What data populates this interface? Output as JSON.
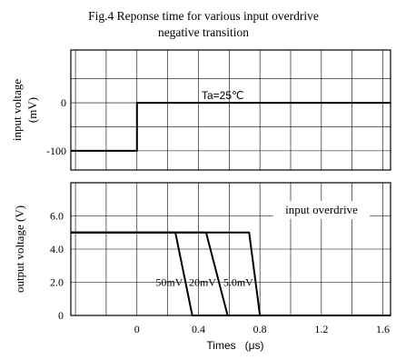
{
  "title_line1": "Fig.4 Reponse time for various input overdrive",
  "title_line2": "negative transition",
  "chart_data": [
    {
      "type": "line",
      "ylabel_line1": "input voltage",
      "ylabel_line2": "(mV)",
      "ylim": [
        -140,
        110
      ],
      "xlim": [
        -0.43,
        1.65
      ],
      "yticks": [
        {
          "value": 0,
          "label": "0"
        },
        {
          "value": -100,
          "label": "-100"
        }
      ],
      "grid": true,
      "annotations": [
        {
          "text": "Ta=25℃"
        }
      ],
      "series": [
        {
          "x": [
            -0.43,
            0.0,
            0.0,
            1.65
          ],
          "y": [
            -100,
            -100,
            0,
            0
          ]
        }
      ]
    },
    {
      "type": "line",
      "ylabel": "output voltage  (V)",
      "xlabel": "Times   (μs)",
      "xlim": [
        -0.43,
        1.65
      ],
      "ylim": [
        0,
        8.0
      ],
      "xticks": [
        {
          "value": 0,
          "label": "0"
        },
        {
          "value": 0.4,
          "label": "0.4"
        },
        {
          "value": 0.8,
          "label": "0.8"
        },
        {
          "value": 1.2,
          "label": "1.2"
        },
        {
          "value": 1.6,
          "label": "1.6"
        }
      ],
      "yticks": [
        {
          "value": 0,
          "label": "0"
        },
        {
          "value": 2.0,
          "label": "2.0"
        },
        {
          "value": 4.0,
          "label": "4.0"
        },
        {
          "value": 6.0,
          "label": "6.0"
        }
      ],
      "grid": true,
      "legend": {
        "title": "input overdrive"
      },
      "series": [
        {
          "name": "50mV",
          "x": [
            -0.43,
            0.25,
            0.36,
            1.65
          ],
          "y": [
            5.0,
            5.0,
            0,
            0
          ]
        },
        {
          "name": "20mV",
          "x": [
            -0.43,
            0.45,
            0.59,
            1.65
          ],
          "y": [
            5.0,
            5.0,
            0,
            0
          ]
        },
        {
          "name": "5.0mV",
          "x": [
            -0.43,
            0.73,
            0.8,
            1.65
          ],
          "y": [
            5.0,
            5.0,
            0,
            0
          ]
        }
      ]
    }
  ]
}
